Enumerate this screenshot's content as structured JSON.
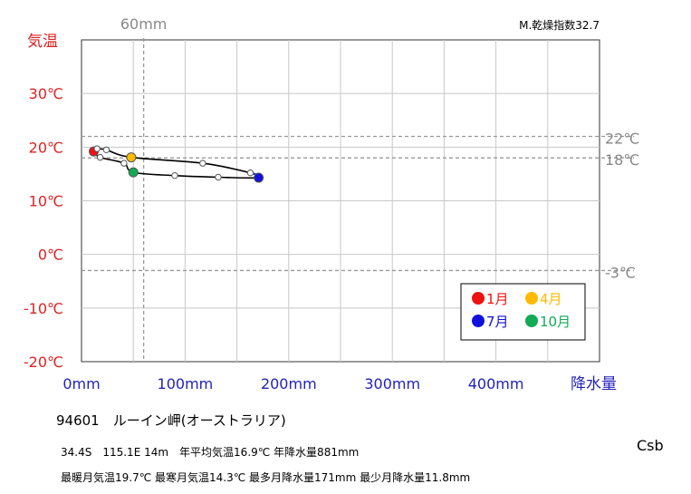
{
  "chart_data": {
    "type": "line",
    "title": "",
    "index_label": "M.乾燥指数32.7",
    "ylabel": "気温",
    "xlabel": "降水量",
    "xlim": [
      0,
      500
    ],
    "ylim": [
      -20,
      40
    ],
    "x_ticks": [
      "0mm",
      "100mm",
      "200mm",
      "300mm",
      "400mm"
    ],
    "y_ticks": [
      "30℃",
      "20℃",
      "10℃",
      "0℃",
      "-10℃",
      "-20℃"
    ],
    "grid": true,
    "reference_lines": {
      "precip": {
        "value": 60,
        "label": "60mm"
      },
      "temps": [
        {
          "value": 22,
          "label": "22℃"
        },
        {
          "value": 18,
          "label": "18℃"
        },
        {
          "value": -3,
          "label": "-3℃"
        }
      ]
    },
    "months": [
      {
        "month": 1,
        "precip": 11.8,
        "temp": 19.2
      },
      {
        "month": 2,
        "precip": 15,
        "temp": 19.7
      },
      {
        "month": 3,
        "precip": 24,
        "temp": 19.5
      },
      {
        "month": 4,
        "precip": 48,
        "temp": 18.1
      },
      {
        "month": 5,
        "precip": 117,
        "temp": 17.0
      },
      {
        "month": 6,
        "precip": 163,
        "temp": 15.2
      },
      {
        "month": 7,
        "precip": 171,
        "temp": 14.3
      },
      {
        "month": 8,
        "precip": 132,
        "temp": 14.4
      },
      {
        "month": 9,
        "precip": 90,
        "temp": 14.7
      },
      {
        "month": 10,
        "precip": 50,
        "temp": 15.3
      },
      {
        "month": 11,
        "precip": 41,
        "temp": 17.0
      },
      {
        "month": 12,
        "precip": 18,
        "temp": 18.1
      }
    ],
    "legend": {
      "position": "bottom-right",
      "items": [
        {
          "label": "1月",
          "color": "#ee1111",
          "month": 1
        },
        {
          "label": "4月",
          "color": "#ffbb00",
          "month": 4
        },
        {
          "label": "7月",
          "color": "#1111dd",
          "month": 7
        },
        {
          "label": "10月",
          "color": "#11aa55",
          "month": 10
        }
      ]
    },
    "colors": {
      "temp_axis": "#dd2222",
      "precip_axis": "#2222bb",
      "reference": "#999999",
      "summer_segment": "#1133dd"
    }
  },
  "station": "94601　ルーイン岬(オーストラリア)",
  "koppen": "Csb",
  "info_line1": "34.4S　115.1E 14m　年平均気温16.9℃ 年降水量881mm",
  "info_line2": "最暖月気温19.7℃ 最寒月気温14.3℃ 最多月降水量171mm 最少月降水量11.8mm"
}
